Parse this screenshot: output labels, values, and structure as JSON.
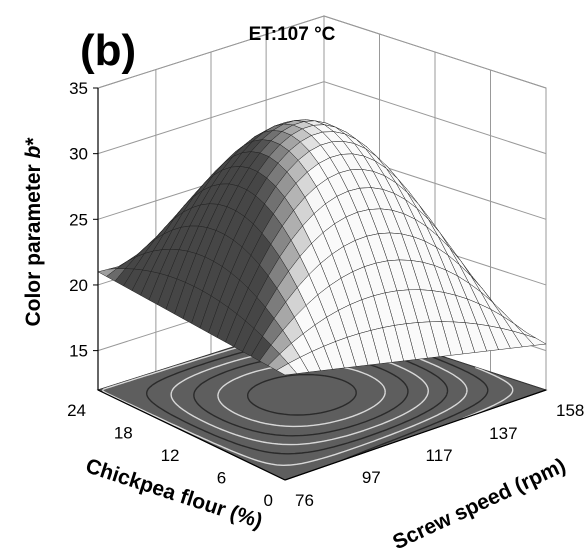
{
  "chart_data": {
    "type": "surface",
    "panel_label": "(b)",
    "title": "ET:107 °C",
    "xlabel": "Chickpea flour (%)",
    "ylabel": "Screw speed (rpm)",
    "zlabel_main": "Color parameter ",
    "zlabel_italic": "b",
    "zlabel_suffix": "*",
    "x_ticks": [
      "0",
      "6",
      "12",
      "18",
      "24"
    ],
    "y_ticks": [
      "76",
      "97",
      "117",
      "137",
      "158"
    ],
    "z_ticks": [
      "15",
      "20",
      "25",
      "30",
      "35"
    ],
    "xlim": [
      0,
      24
    ],
    "ylim": [
      76,
      158
    ],
    "zlim": [
      12,
      35
    ],
    "surface_corners": [
      {
        "chickpea_flour": 0,
        "screw_speed": 76,
        "b_star": 20
      },
      {
        "chickpea_flour": 24,
        "screw_speed": 76,
        "b_star": 21
      },
      {
        "chickpea_flour": 0,
        "screw_speed": 158,
        "b_star": 15.5
      },
      {
        "chickpea_flour": 24,
        "screw_speed": 158,
        "b_star": 20
      }
    ],
    "surface_peak": {
      "chickpea_flour": 12,
      "screw_speed": 117,
      "b_star": 32.5
    },
    "contour_projection": true,
    "grid": true
  }
}
